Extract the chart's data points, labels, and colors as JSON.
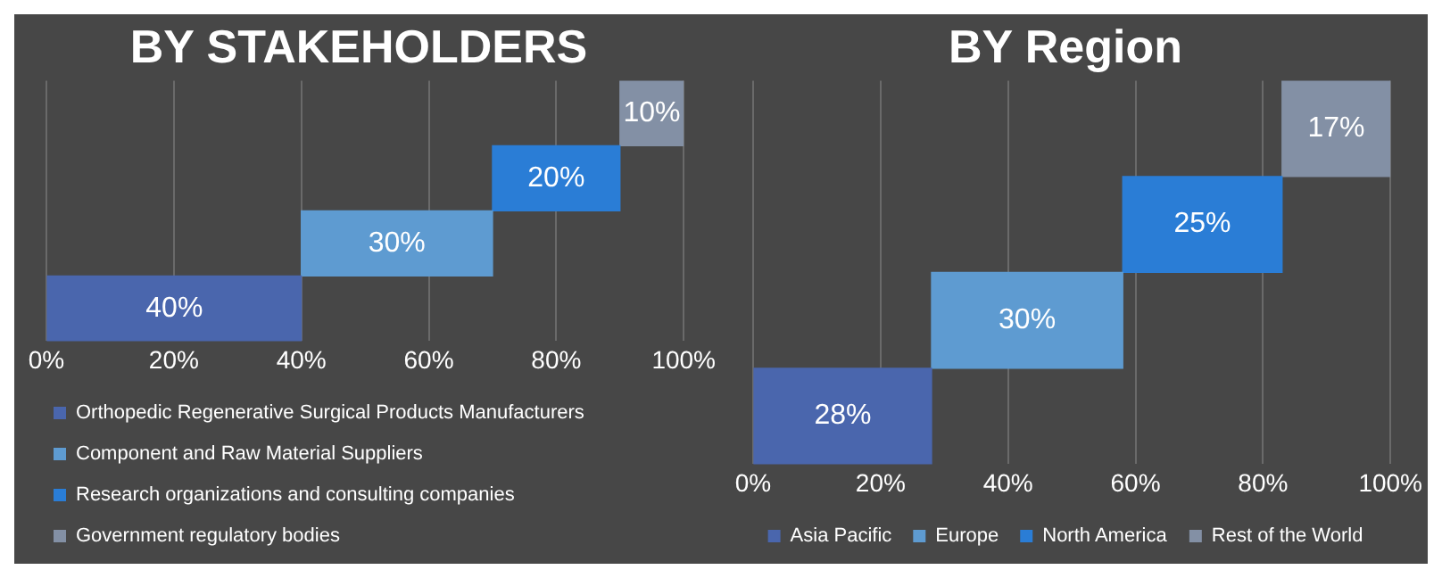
{
  "chart_data": [
    {
      "type": "bar",
      "title": "BY STAKEHOLDERS",
      "orientation": "horizontal",
      "categories": [
        null,
        null,
        null,
        null
      ],
      "xlim": [
        0,
        100
      ],
      "xticks": [
        {
          "value": 0,
          "label": "0%"
        },
        {
          "value": 20,
          "label": "20%"
        },
        {
          "value": 40,
          "label": "40%"
        },
        {
          "value": 60,
          "label": "60%"
        },
        {
          "value": 80,
          "label": "80%"
        },
        {
          "value": 100,
          "label": "100%"
        }
      ],
      "grid": "x",
      "legend": "bottom",
      "tick_labels": "x",
      "series": [
        {
          "name": "Orthopedic Regenerative Surgical Products Manufacturers",
          "color": "#4a66ad",
          "values": [
            null,
            null,
            null,
            40
          ],
          "base": [
            null,
            null,
            null,
            0
          ],
          "value_labels": [
            null,
            null,
            null,
            "40%"
          ]
        },
        {
          "name": "Component and Raw Material Suppliers",
          "color": "#5e9bd1",
          "values": [
            null,
            null,
            30,
            null
          ],
          "base": [
            null,
            null,
            40,
            null
          ],
          "value_labels": [
            null,
            null,
            "30%",
            null
          ]
        },
        {
          "name": "Research organizations and consulting companies",
          "color": "#2a7dd6",
          "values": [
            null,
            20,
            null,
            null
          ],
          "base": [
            null,
            70,
            null,
            null
          ],
          "value_labels": [
            null,
            "20%",
            null,
            null
          ]
        },
        {
          "name": "Government regulatory bodies",
          "color": "#8390a5",
          "values": [
            10,
            null,
            null,
            null
          ],
          "base": [
            90,
            null,
            null,
            null
          ],
          "value_labels": [
            "10%",
            null,
            null,
            null
          ]
        }
      ]
    },
    {
      "type": "bar",
      "title": "BY Region",
      "orientation": "horizontal",
      "categories": [
        null,
        null,
        null,
        null
      ],
      "xlim": [
        0,
        100
      ],
      "xticks": [
        {
          "value": 0,
          "label": "0%"
        },
        {
          "value": 20,
          "label": "20%"
        },
        {
          "value": 40,
          "label": "40%"
        },
        {
          "value": 60,
          "label": "60%"
        },
        {
          "value": 80,
          "label": "80%"
        },
        {
          "value": 100,
          "label": "100%"
        }
      ],
      "grid": "x",
      "legend": "bottom",
      "tick_labels": "x",
      "series": [
        {
          "name": "Asia Pacific",
          "color": "#4a66ad",
          "values": [
            null,
            null,
            null,
            28
          ],
          "base": [
            null,
            null,
            null,
            0
          ],
          "value_labels": [
            null,
            null,
            null,
            "28%"
          ]
        },
        {
          "name": "Europe",
          "color": "#5e9bd1",
          "values": [
            null,
            null,
            30,
            null
          ],
          "base": [
            null,
            null,
            28,
            null
          ],
          "value_labels": [
            null,
            null,
            "30%",
            null
          ]
        },
        {
          "name": "North America",
          "color": "#2a7dd6",
          "values": [
            null,
            25,
            null,
            null
          ],
          "base": [
            null,
            58,
            null,
            null
          ],
          "value_labels": [
            null,
            "25%",
            null,
            null
          ]
        },
        {
          "name": "Rest of the World",
          "color": "#8390a5",
          "values": [
            17,
            null,
            null,
            null
          ],
          "base": [
            83,
            null,
            null,
            null
          ],
          "value_labels": [
            "17%",
            null,
            null,
            null
          ]
        }
      ]
    }
  ]
}
